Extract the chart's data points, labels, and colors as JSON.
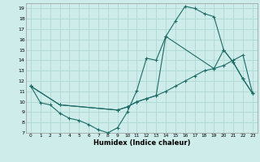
{
  "xlabel": "Humidex (Indice chaleur)",
  "bg_color": "#cdecea",
  "grid_color": "#aed8d3",
  "line_color": "#1e6b65",
  "xlim": [
    -0.5,
    23.5
  ],
  "ylim": [
    7,
    19.5
  ],
  "xticks": [
    0,
    1,
    2,
    3,
    4,
    5,
    6,
    7,
    8,
    9,
    10,
    11,
    12,
    13,
    14,
    15,
    16,
    17,
    18,
    19,
    20,
    21,
    22,
    23
  ],
  "yticks": [
    7,
    8,
    9,
    10,
    11,
    12,
    13,
    14,
    15,
    16,
    17,
    18,
    19
  ],
  "line1_x": [
    0,
    1,
    2,
    3,
    4,
    5,
    6,
    7,
    8,
    9,
    10,
    11,
    12,
    13,
    14,
    15,
    16,
    17,
    18,
    19,
    20,
    21,
    22,
    23
  ],
  "line1_y": [
    11.5,
    9.9,
    9.7,
    8.9,
    8.4,
    8.2,
    7.8,
    7.3,
    7.0,
    7.5,
    9.0,
    11.1,
    14.2,
    14.0,
    16.3,
    17.8,
    19.2,
    19.0,
    18.5,
    18.2,
    15.0,
    13.8,
    12.2,
    10.8
  ],
  "line2_x": [
    0,
    3,
    9,
    10,
    11,
    12,
    13,
    14,
    15,
    16,
    17,
    18,
    19,
    20,
    21,
    22,
    23
  ],
  "line2_y": [
    11.5,
    9.7,
    9.2,
    9.5,
    10.0,
    10.3,
    10.6,
    11.0,
    11.5,
    12.0,
    12.5,
    13.0,
    13.2,
    13.5,
    14.0,
    14.5,
    10.8
  ],
  "line3_x": [
    0,
    3,
    9,
    10,
    11,
    12,
    13,
    14,
    19,
    20,
    21,
    22,
    23
  ],
  "line3_y": [
    11.5,
    9.7,
    9.2,
    9.5,
    10.0,
    10.3,
    10.6,
    16.3,
    13.2,
    15.0,
    13.8,
    12.2,
    10.8
  ]
}
